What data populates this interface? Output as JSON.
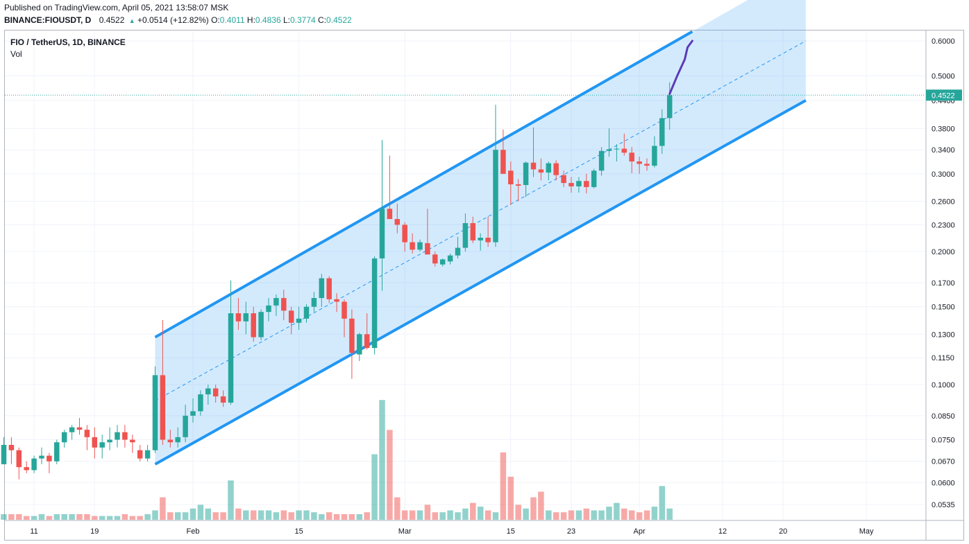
{
  "header": {
    "published": "Published on TradingView.com, April 05, 2021 13:58:07 MSK",
    "symbol": "BINANCE:FIOUSDT, D",
    "price": "0.4522",
    "change": "+0.0514 (+12.82%)",
    "o_label": "O:",
    "o": "0.4011",
    "h_label": "H:",
    "h": "0.4836",
    "l_label": "L:",
    "l": "0.3774",
    "c_label": "C:",
    "c": "0.4522"
  },
  "legend": {
    "title": "FIO / TetherUS, 1D, BINANCE",
    "vol": "Vol"
  },
  "colors": {
    "up": "#26a69a",
    "down": "#ef5350",
    "channel": "#2196f3",
    "projection": "#5b3ab8",
    "price_tag": "#26a69a"
  },
  "chart_data": {
    "type": "candlestick",
    "y_scale": "log",
    "ylim": [
      0.05,
      0.63
    ],
    "y_ticks": [
      "0.6000",
      "0.5000",
      "0.4400",
      "0.3800",
      "0.3400",
      "0.3000",
      "0.2600",
      "0.2300",
      "0.2000",
      "0.1700",
      "0.1500",
      "0.1300",
      "0.1150",
      "0.1000",
      "0.0850",
      "0.0750",
      "0.0670",
      "0.0600",
      "0.0535"
    ],
    "x_ticks": [
      {
        "label": "11",
        "date": "2021-01-11"
      },
      {
        "label": "19",
        "date": "2021-01-19"
      },
      {
        "label": "Feb",
        "date": "2021-02-01"
      },
      {
        "label": "15",
        "date": "2021-02-15"
      },
      {
        "label": "Mar",
        "date": "2021-03-01"
      },
      {
        "label": "15",
        "date": "2021-03-15"
      },
      {
        "label": "23",
        "date": "2021-03-23"
      },
      {
        "label": "Apr",
        "date": "2021-04-01"
      },
      {
        "label": "12",
        "date": "2021-04-12"
      },
      {
        "label": "20",
        "date": "2021-04-20"
      },
      {
        "label": "May",
        "date": "2021-05-01"
      }
    ],
    "last_price": "0.4522",
    "candles": [
      {
        "date": "2021-01-05",
        "o": 0.066,
        "h": 0.069,
        "l": 0.062,
        "c": 0.066
      },
      {
        "date": "2021-01-06",
        "o": 0.066,
        "h": 0.069,
        "l": 0.063,
        "c": 0.065
      },
      {
        "date": "2021-01-07",
        "o": 0.066,
        "h": 0.076,
        "l": 0.066,
        "c": 0.073
      },
      {
        "date": "2021-01-08",
        "o": 0.073,
        "h": 0.076,
        "l": 0.066,
        "c": 0.071
      },
      {
        "date": "2021-01-09",
        "o": 0.071,
        "h": 0.072,
        "l": 0.061,
        "c": 0.065
      },
      {
        "date": "2021-01-10",
        "o": 0.065,
        "h": 0.067,
        "l": 0.063,
        "c": 0.064
      },
      {
        "date": "2021-01-11",
        "o": 0.064,
        "h": 0.069,
        "l": 0.063,
        "c": 0.068
      },
      {
        "date": "2021-01-12",
        "o": 0.068,
        "h": 0.072,
        "l": 0.066,
        "c": 0.069
      },
      {
        "date": "2021-01-13",
        "o": 0.069,
        "h": 0.07,
        "l": 0.063,
        "c": 0.067
      },
      {
        "date": "2021-01-14",
        "o": 0.067,
        "h": 0.075,
        "l": 0.066,
        "c": 0.074
      },
      {
        "date": "2021-01-15",
        "o": 0.074,
        "h": 0.079,
        "l": 0.072,
        "c": 0.078
      },
      {
        "date": "2021-01-16",
        "o": 0.078,
        "h": 0.081,
        "l": 0.075,
        "c": 0.08
      },
      {
        "date": "2021-01-17",
        "o": 0.08,
        "h": 0.084,
        "l": 0.077,
        "c": 0.079
      },
      {
        "date": "2021-01-18",
        "o": 0.079,
        "h": 0.081,
        "l": 0.071,
        "c": 0.076
      },
      {
        "date": "2021-01-19",
        "o": 0.076,
        "h": 0.08,
        "l": 0.068,
        "c": 0.072
      },
      {
        "date": "2021-01-20",
        "o": 0.072,
        "h": 0.077,
        "l": 0.068,
        "c": 0.074
      },
      {
        "date": "2021-01-21",
        "o": 0.074,
        "h": 0.08,
        "l": 0.071,
        "c": 0.075
      },
      {
        "date": "2021-01-22",
        "o": 0.075,
        "h": 0.081,
        "l": 0.072,
        "c": 0.078
      },
      {
        "date": "2021-01-23",
        "o": 0.078,
        "h": 0.081,
        "l": 0.072,
        "c": 0.075
      },
      {
        "date": "2021-01-24",
        "o": 0.075,
        "h": 0.077,
        "l": 0.07,
        "c": 0.074
      },
      {
        "date": "2021-01-25",
        "o": 0.071,
        "h": 0.073,
        "l": 0.067,
        "c": 0.068
      },
      {
        "date": "2021-01-26",
        "o": 0.068,
        "h": 0.073,
        "l": 0.067,
        "c": 0.071
      },
      {
        "date": "2021-01-27",
        "o": 0.071,
        "h": 0.11,
        "l": 0.07,
        "c": 0.105
      },
      {
        "date": "2021-01-28",
        "o": 0.105,
        "h": 0.14,
        "l": 0.073,
        "c": 0.075
      },
      {
        "date": "2021-01-29",
        "o": 0.075,
        "h": 0.079,
        "l": 0.072,
        "c": 0.074
      },
      {
        "date": "2021-01-30",
        "o": 0.074,
        "h": 0.08,
        "l": 0.072,
        "c": 0.076
      },
      {
        "date": "2021-01-31",
        "o": 0.076,
        "h": 0.09,
        "l": 0.074,
        "c": 0.085
      },
      {
        "date": "2021-02-01",
        "o": 0.085,
        "h": 0.093,
        "l": 0.082,
        "c": 0.087
      },
      {
        "date": "2021-02-02",
        "o": 0.087,
        "h": 0.097,
        "l": 0.085,
        "c": 0.095
      },
      {
        "date": "2021-02-03",
        "o": 0.095,
        "h": 0.1,
        "l": 0.09,
        "c": 0.098
      },
      {
        "date": "2021-02-04",
        "o": 0.098,
        "h": 0.1,
        "l": 0.091,
        "c": 0.094
      },
      {
        "date": "2021-02-05",
        "o": 0.094,
        "h": 0.097,
        "l": 0.089,
        "c": 0.091
      },
      {
        "date": "2021-02-06",
        "o": 0.091,
        "h": 0.172,
        "l": 0.09,
        "c": 0.145
      },
      {
        "date": "2021-02-07",
        "o": 0.145,
        "h": 0.157,
        "l": 0.133,
        "c": 0.139
      },
      {
        "date": "2021-02-08",
        "o": 0.139,
        "h": 0.154,
        "l": 0.13,
        "c": 0.145
      },
      {
        "date": "2021-02-09",
        "o": 0.145,
        "h": 0.15,
        "l": 0.125,
        "c": 0.128
      },
      {
        "date": "2021-02-10",
        "o": 0.128,
        "h": 0.148,
        "l": 0.126,
        "c": 0.146
      },
      {
        "date": "2021-02-11",
        "o": 0.146,
        "h": 0.157,
        "l": 0.139,
        "c": 0.151
      },
      {
        "date": "2021-02-12",
        "o": 0.151,
        "h": 0.16,
        "l": 0.143,
        "c": 0.157
      },
      {
        "date": "2021-02-13",
        "o": 0.157,
        "h": 0.164,
        "l": 0.14,
        "c": 0.147
      },
      {
        "date": "2021-02-14",
        "o": 0.147,
        "h": 0.15,
        "l": 0.13,
        "c": 0.138
      },
      {
        "date": "2021-02-15",
        "o": 0.138,
        "h": 0.15,
        "l": 0.133,
        "c": 0.141
      },
      {
        "date": "2021-02-16",
        "o": 0.141,
        "h": 0.152,
        "l": 0.138,
        "c": 0.15
      },
      {
        "date": "2021-02-17",
        "o": 0.15,
        "h": 0.162,
        "l": 0.146,
        "c": 0.157
      },
      {
        "date": "2021-02-18",
        "o": 0.157,
        "h": 0.178,
        "l": 0.15,
        "c": 0.174
      },
      {
        "date": "2021-02-19",
        "o": 0.174,
        "h": 0.176,
        "l": 0.153,
        "c": 0.156
      },
      {
        "date": "2021-02-20",
        "o": 0.156,
        "h": 0.161,
        "l": 0.146,
        "c": 0.154
      },
      {
        "date": "2021-02-21",
        "o": 0.154,
        "h": 0.156,
        "l": 0.128,
        "c": 0.141
      },
      {
        "date": "2021-02-22",
        "o": 0.141,
        "h": 0.148,
        "l": 0.103,
        "c": 0.118
      },
      {
        "date": "2021-02-23",
        "o": 0.117,
        "h": 0.131,
        "l": 0.113,
        "c": 0.13
      },
      {
        "date": "2021-02-24",
        "o": 0.13,
        "h": 0.145,
        "l": 0.12,
        "c": 0.121
      },
      {
        "date": "2021-02-25",
        "o": 0.121,
        "h": 0.195,
        "l": 0.117,
        "c": 0.193
      },
      {
        "date": "2021-02-26",
        "o": 0.193,
        "h": 0.358,
        "l": 0.163,
        "c": 0.25
      },
      {
        "date": "2021-02-27",
        "o": 0.25,
        "h": 0.33,
        "l": 0.238,
        "c": 0.237
      },
      {
        "date": "2021-02-28",
        "o": 0.237,
        "h": 0.257,
        "l": 0.22,
        "c": 0.23
      },
      {
        "date": "2021-03-01",
        "o": 0.23,
        "h": 0.233,
        "l": 0.2,
        "c": 0.21
      },
      {
        "date": "2021-03-02",
        "o": 0.21,
        "h": 0.22,
        "l": 0.198,
        "c": 0.202
      },
      {
        "date": "2021-03-03",
        "o": 0.202,
        "h": 0.213,
        "l": 0.2,
        "c": 0.21
      },
      {
        "date": "2021-03-04",
        "o": 0.209,
        "h": 0.25,
        "l": 0.2,
        "c": 0.197
      },
      {
        "date": "2021-03-05",
        "o": 0.197,
        "h": 0.2,
        "l": 0.185,
        "c": 0.188
      },
      {
        "date": "2021-03-06",
        "o": 0.187,
        "h": 0.193,
        "l": 0.185,
        "c": 0.192
      },
      {
        "date": "2021-03-07",
        "o": 0.19,
        "h": 0.198,
        "l": 0.187,
        "c": 0.196
      },
      {
        "date": "2021-03-08",
        "o": 0.196,
        "h": 0.216,
        "l": 0.193,
        "c": 0.204
      },
      {
        "date": "2021-03-09",
        "o": 0.204,
        "h": 0.244,
        "l": 0.2,
        "c": 0.232
      },
      {
        "date": "2021-03-10",
        "o": 0.232,
        "h": 0.24,
        "l": 0.209,
        "c": 0.212
      },
      {
        "date": "2021-03-11",
        "o": 0.212,
        "h": 0.22,
        "l": 0.201,
        "c": 0.215
      },
      {
        "date": "2021-03-12",
        "o": 0.215,
        "h": 0.24,
        "l": 0.205,
        "c": 0.21
      },
      {
        "date": "2021-03-13",
        "o": 0.21,
        "h": 0.43,
        "l": 0.205,
        "c": 0.34
      },
      {
        "date": "2021-03-14",
        "o": 0.34,
        "h": 0.378,
        "l": 0.3,
        "c": 0.3
      },
      {
        "date": "2021-03-15",
        "o": 0.305,
        "h": 0.32,
        "l": 0.255,
        "c": 0.284
      },
      {
        "date": "2021-03-16",
        "o": 0.284,
        "h": 0.292,
        "l": 0.26,
        "c": 0.282
      },
      {
        "date": "2021-03-17",
        "o": 0.283,
        "h": 0.32,
        "l": 0.266,
        "c": 0.318
      },
      {
        "date": "2021-03-18",
        "o": 0.318,
        "h": 0.382,
        "l": 0.295,
        "c": 0.307
      },
      {
        "date": "2021-03-19",
        "o": 0.307,
        "h": 0.325,
        "l": 0.29,
        "c": 0.302
      },
      {
        "date": "2021-03-20",
        "o": 0.302,
        "h": 0.32,
        "l": 0.29,
        "c": 0.317
      },
      {
        "date": "2021-03-21",
        "o": 0.317,
        "h": 0.322,
        "l": 0.29,
        "c": 0.298
      },
      {
        "date": "2021-03-22",
        "o": 0.298,
        "h": 0.305,
        "l": 0.28,
        "c": 0.286
      },
      {
        "date": "2021-03-23",
        "o": 0.286,
        "h": 0.295,
        "l": 0.272,
        "c": 0.281
      },
      {
        "date": "2021-03-24",
        "o": 0.281,
        "h": 0.295,
        "l": 0.272,
        "c": 0.289
      },
      {
        "date": "2021-03-25",
        "o": 0.289,
        "h": 0.3,
        "l": 0.271,
        "c": 0.28
      },
      {
        "date": "2021-03-26",
        "o": 0.28,
        "h": 0.308,
        "l": 0.278,
        "c": 0.305
      },
      {
        "date": "2021-03-27",
        "o": 0.305,
        "h": 0.345,
        "l": 0.297,
        "c": 0.338
      },
      {
        "date": "2021-03-28",
        "o": 0.338,
        "h": 0.38,
        "l": 0.328,
        "c": 0.341
      },
      {
        "date": "2021-03-29",
        "o": 0.341,
        "h": 0.35,
        "l": 0.32,
        "c": 0.342
      },
      {
        "date": "2021-03-30",
        "o": 0.342,
        "h": 0.37,
        "l": 0.33,
        "c": 0.335
      },
      {
        "date": "2021-03-31",
        "o": 0.335,
        "h": 0.345,
        "l": 0.301,
        "c": 0.32
      },
      {
        "date": "2021-04-01",
        "o": 0.32,
        "h": 0.328,
        "l": 0.3,
        "c": 0.316
      },
      {
        "date": "2021-04-02",
        "o": 0.316,
        "h": 0.325,
        "l": 0.305,
        "c": 0.313
      },
      {
        "date": "2021-04-03",
        "o": 0.313,
        "h": 0.365,
        "l": 0.31,
        "c": 0.347
      },
      {
        "date": "2021-04-04",
        "o": 0.347,
        "h": 0.42,
        "l": 0.333,
        "c": 0.401
      },
      {
        "date": "2021-04-05",
        "o": 0.4011,
        "h": 0.4836,
        "l": 0.3774,
        "c": 0.4522
      }
    ],
    "volume_relative": [
      0.3,
      0.2,
      0.3,
      0.3,
      0.3,
      0.2,
      0.2,
      0.3,
      0.2,
      0.3,
      0.3,
      0.3,
      0.3,
      0.3,
      0.2,
      0.2,
      0.2,
      0.2,
      0.3,
      0.2,
      0.2,
      0.3,
      0.5,
      1.2,
      0.4,
      0.4,
      0.4,
      0.6,
      0.8,
      0.6,
      0.4,
      0.4,
      2.1,
      0.6,
      0.5,
      0.5,
      0.5,
      0.5,
      0.4,
      0.5,
      0.4,
      0.5,
      0.5,
      0.4,
      0.3,
      0.4,
      0.3,
      0.3,
      0.3,
      0.3,
      0.4,
      3.5,
      6.4,
      4.8,
      1.2,
      0.5,
      0.5,
      0.5,
      0.8,
      0.4,
      0.4,
      0.5,
      0.4,
      0.6,
      0.9,
      0.7,
      0.5,
      0.4,
      3.6,
      2.3,
      0.8,
      0.6,
      1.2,
      1.5,
      0.5,
      0.4,
      0.4,
      0.5,
      0.5,
      0.6,
      0.5,
      0.5,
      0.7,
      0.9,
      0.6,
      0.5,
      0.4,
      0.5,
      0.7,
      1.8,
      0.6
    ],
    "channel": {
      "upper": [
        {
          "date": "2021-01-27",
          "v": 0.128
        },
        {
          "date": "2021-04-08",
          "v": 0.63
        }
      ],
      "lower": [
        {
          "date": "2021-01-27",
          "v": 0.066
        },
        {
          "date": "2021-04-23",
          "v": 0.44
        }
      ],
      "mid_end": {
        "date": "2021-04-23",
        "v": 0.6
      },
      "fill_end": "2021-04-23"
    },
    "projection": [
      {
        "date": "2021-04-05",
        "v": 0.455
      },
      {
        "date": "2021-04-06",
        "v": 0.5
      },
      {
        "date": "2021-04-07",
        "v": 0.545
      },
      {
        "date": "2021-04-07",
        "v": 0.58
      },
      {
        "date": "2021-04-08",
        "v": 0.6
      }
    ]
  }
}
